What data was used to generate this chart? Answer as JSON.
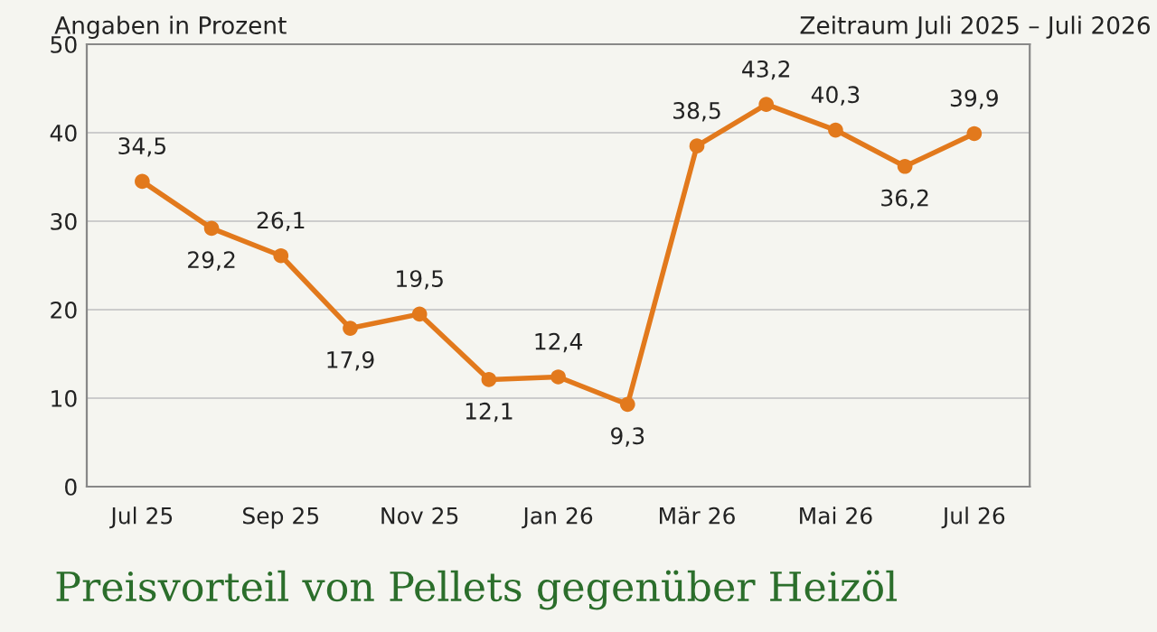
{
  "chart_data": {
    "type": "line",
    "title": "Preisvorteil von Pellets gegenüber Heizöl",
    "subtitle": "Zeitraum Juli 2025 – Juli 2026",
    "ylabel": "Angaben in Prozent",
    "categories": [
      "Jul 25",
      null,
      "Sep 25",
      null,
      "Nov 25",
      null,
      "Jan 26",
      null,
      "Mär 26",
      null,
      "Mai 26",
      null,
      "Jul 26"
    ],
    "series": [
      {
        "color": "#e2791c",
        "values": [
          34.5,
          29.2,
          26.1,
          17.9,
          19.5,
          12.1,
          12.4,
          9.3,
          38.5,
          43.2,
          40.3,
          36.2,
          39.9
        ],
        "value_labels": [
          "34,5",
          "29,2",
          "26,1",
          "17,9",
          "19,5",
          "12,1",
          "12,4",
          "9,3",
          "38,5",
          "43,2",
          "40,3",
          "36,2",
          "39,9"
        ]
      }
    ],
    "ylim": [
      0,
      50
    ],
    "yticks": [
      0,
      10,
      20,
      30,
      40,
      50
    ],
    "grid": "y",
    "marker": "circle",
    "line_style": "solid"
  }
}
